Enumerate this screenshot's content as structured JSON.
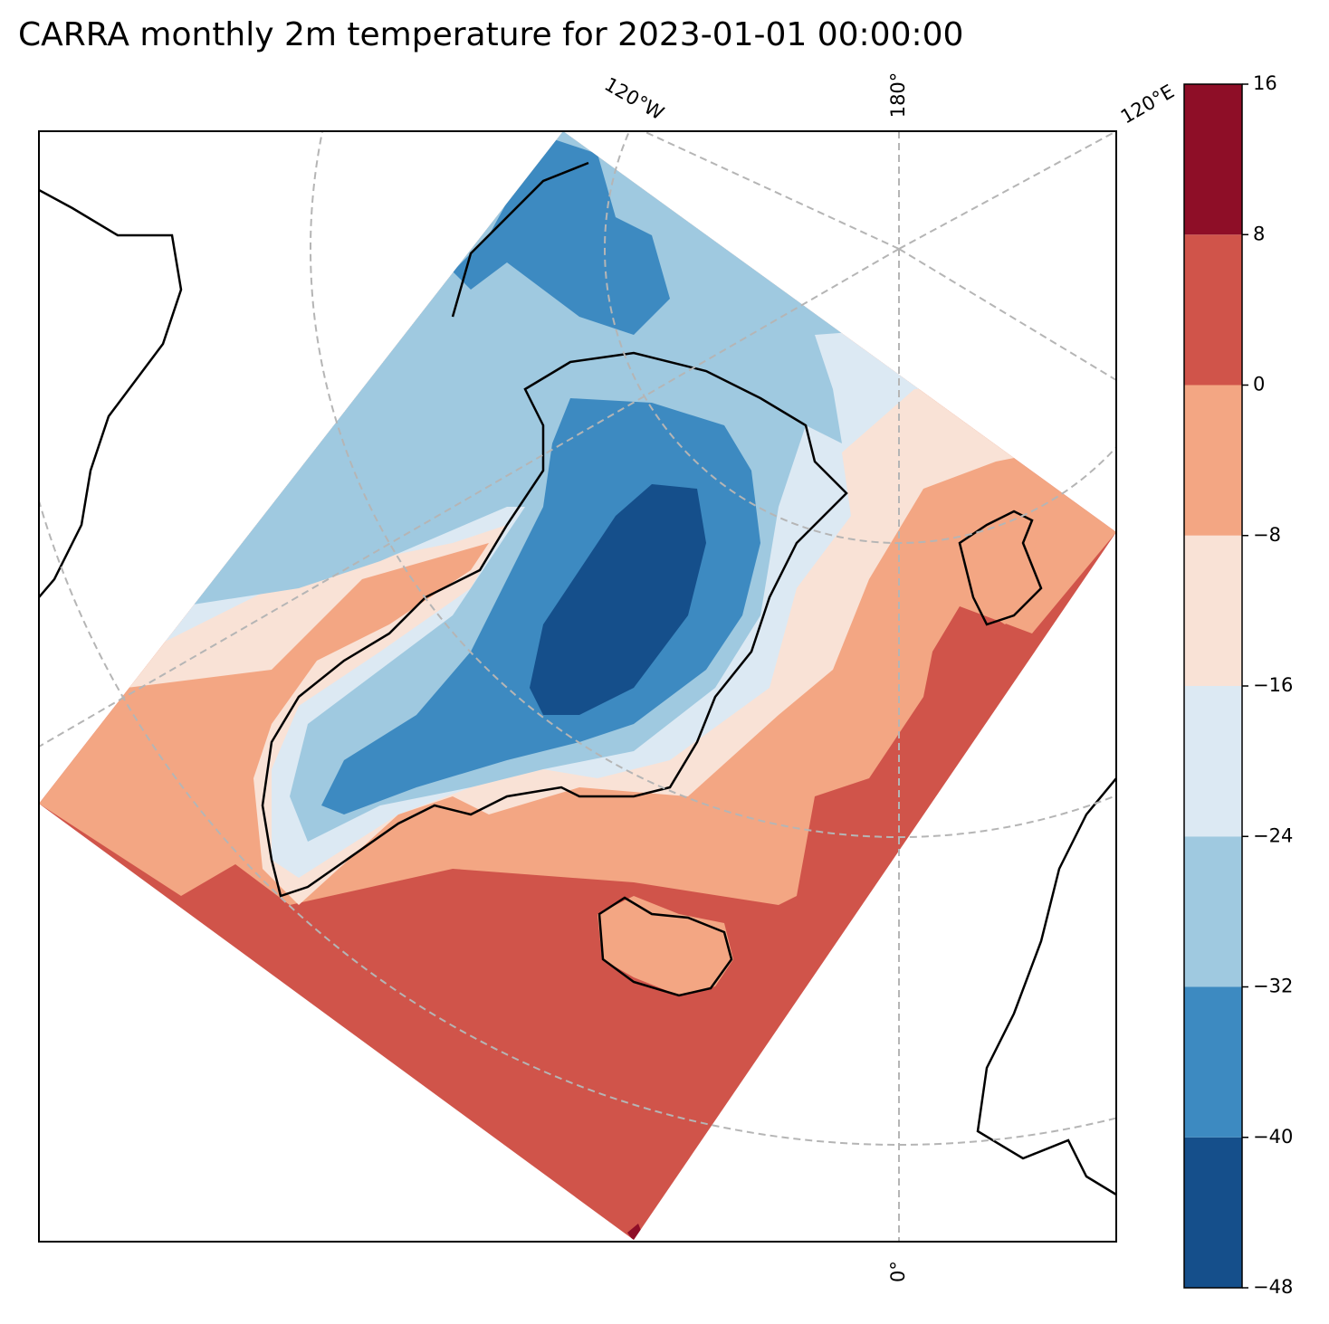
{
  "chart_data": {
    "type": "contour-map",
    "title": "CARRA monthly 2m temperature for 2023-01-01 00:00:00",
    "meridian_labels": [
      "120°W",
      "180°",
      "120°E",
      "0°"
    ],
    "colors": [
      "#154f8b",
      "#3d8ac1",
      "#9fc9e0",
      "#dce9f3",
      "#f9e2d6",
      "#f3a683",
      "#d0544a",
      "#8e0e27"
    ],
    "clim": [
      -48,
      16
    ],
    "cticks": [
      {
        "value": -48,
        "label": "−48"
      },
      {
        "value": -40,
        "label": "−40"
      },
      {
        "value": -32,
        "label": "−32"
      },
      {
        "value": -24,
        "label": "−24"
      },
      {
        "value": -16,
        "label": "−16"
      },
      {
        "value": -8,
        "label": "−8"
      },
      0,
      8,
      16
    ]
  }
}
